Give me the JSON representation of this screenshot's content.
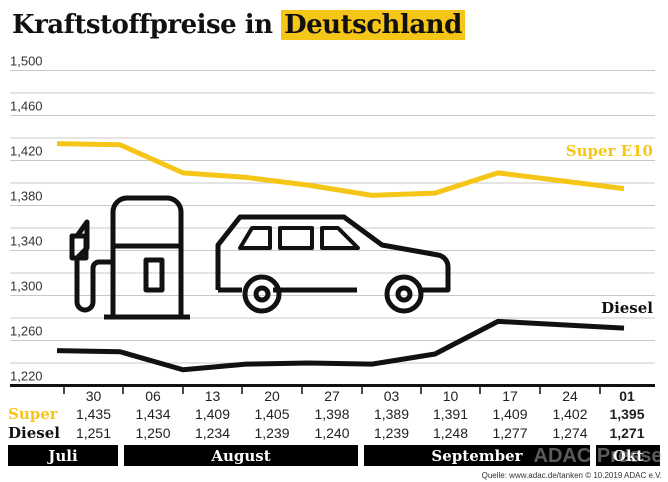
{
  "chart_data": {
    "type": "line",
    "title_prefix": "Kraftstoffpreise in",
    "title_highlight": "Deutschland",
    "categories": [
      "30",
      "06",
      "13",
      "20",
      "27",
      "03",
      "10",
      "17",
      "24",
      "01"
    ],
    "months": [
      {
        "label": "Juli"
      },
      {
        "label": "August"
      },
      {
        "label": "September"
      },
      {
        "label": "Okt"
      }
    ],
    "ylim": [
      1.22,
      1.5
    ],
    "yticks": [
      "1,500",
      "1,460",
      "1,420",
      "1,380",
      "1,340",
      "1,300",
      "1,260",
      "1,220"
    ],
    "ytick_values": [
      1.5,
      1.46,
      1.42,
      1.38,
      1.34,
      1.3,
      1.26,
      1.22
    ],
    "grid": true,
    "series": [
      {
        "name": "Super E10",
        "row_label": "Super",
        "color": "#f5c518",
        "values": [
          1.435,
          1.434,
          1.409,
          1.405,
          1.398,
          1.389,
          1.391,
          1.409,
          1.402,
          1.395
        ],
        "labels": [
          "1,435",
          "1,434",
          "1,409",
          "1,405",
          "1,398",
          "1,389",
          "1,391",
          "1,409",
          "1,402",
          "1,395"
        ]
      },
      {
        "name": "Diesel",
        "row_label": "Diesel",
        "color": "#111111",
        "values": [
          1.251,
          1.25,
          1.234,
          1.239,
          1.24,
          1.239,
          1.248,
          1.277,
          1.274,
          1.271
        ],
        "labels": [
          "1,251",
          "1,250",
          "1,234",
          "1,239",
          "1,240",
          "1,239",
          "1,248",
          "1,277",
          "1,274",
          "1,271"
        ]
      }
    ],
    "source": "Quelle: www.adac.de/tanken  © 10.2019  ADAC e.V.",
    "watermark": "ADAC Presse"
  }
}
